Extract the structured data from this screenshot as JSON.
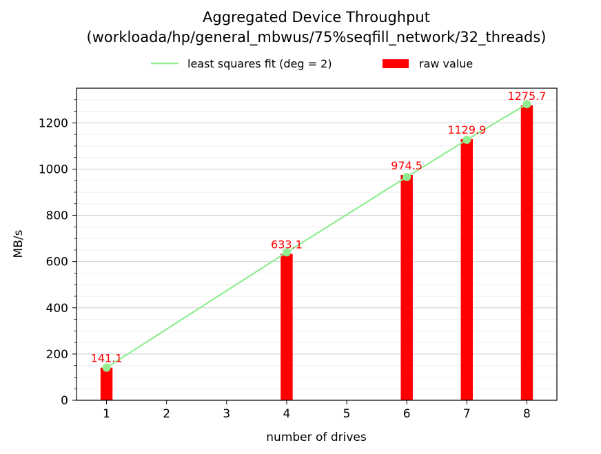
{
  "chart_data": {
    "type": "bar",
    "title_line1": "Aggregated Device Throughput",
    "title_line2": "(workloada/hp/general_mbwus/75%seqfill_network/32_threads)",
    "xlabel": "number of drives",
    "ylabel": "MB/s",
    "x": [
      1,
      4,
      6,
      7,
      8
    ],
    "values": [
      141.1,
      633.1,
      974.5,
      1129.9,
      1275.7
    ],
    "value_labels": [
      "141.1",
      "633.1",
      "974.5",
      "1129.9",
      "1275.7"
    ],
    "fit_values": [
      141.1,
      640.0,
      966.0,
      1127.0,
      1281.0
    ],
    "xticks": [
      "1",
      "2",
      "3",
      "4",
      "5",
      "6",
      "7",
      "8"
    ],
    "xlim": [
      0.5,
      8.5
    ],
    "ylim": [
      0,
      1350
    ],
    "yticks": [
      0,
      200,
      400,
      600,
      800,
      1000,
      1200
    ],
    "ytick_labels": [
      "0",
      "200",
      "400",
      "600",
      "800",
      "1000",
      "1200"
    ],
    "grid": true,
    "legend_position": "top-center",
    "legend": {
      "fit": "least squares fit (deg = 2)",
      "raw": "raw value"
    },
    "colors": {
      "bar": "#ff0000",
      "fit": "#90ee90",
      "label": "#ff0000"
    }
  }
}
